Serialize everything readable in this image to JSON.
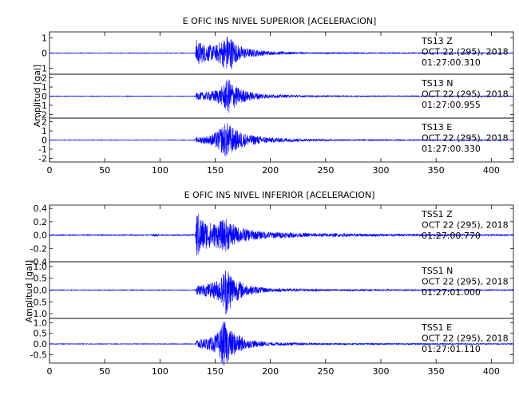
{
  "chart_data": [
    {
      "type": "line",
      "title": "E OFIC INS NIVEL SUPERIOR [ACELERACION]",
      "ylabel": "Amplitud [gal]",
      "xlabel": "",
      "xlim": [
        0,
        420
      ],
      "xticks": [
        "0",
        "50",
        "100",
        "150",
        "200",
        "250",
        "300",
        "350",
        "400"
      ],
      "grid": false,
      "series": [
        {
          "name": "TS13 Z",
          "label_lines": [
            "TS13   Z",
            "OCT 22 (295), 2018",
            "01:27:00.310"
          ],
          "ylim": [
            -1.4,
            1.4
          ],
          "yticks": [
            "1",
            "0",
            "-1"
          ],
          "onset_s": 133,
          "peak_s": 162,
          "peak_amp": 1.3,
          "noise_amp": 0.02,
          "envelope": [
            [
              0,
              0.02
            ],
            [
              132,
              0.02
            ],
            [
              133,
              0.9
            ],
            [
              140,
              0.6
            ],
            [
              150,
              0.5
            ],
            [
              155,
              0.8
            ],
            [
              162,
              1.3
            ],
            [
              170,
              0.55
            ],
            [
              180,
              0.3
            ],
            [
              200,
              0.12
            ],
            [
              230,
              0.06
            ],
            [
              260,
              0.04
            ],
            [
              420,
              0.02
            ]
          ]
        },
        {
          "name": "TS13 N",
          "label_lines": [
            "TS13   N",
            "OCT 22 (295), 2018",
            "01:27:00.955"
          ],
          "ylim": [
            -2.4,
            2.4
          ],
          "yticks": [
            "2",
            "1",
            "0",
            "-1",
            "-2"
          ],
          "onset_s": 133,
          "peak_s": 162,
          "peak_amp": 2.0,
          "noise_amp": 0.03,
          "envelope": [
            [
              0,
              0.03
            ],
            [
              132,
              0.03
            ],
            [
              133,
              0.4
            ],
            [
              145,
              0.5
            ],
            [
              155,
              0.9
            ],
            [
              162,
              2.0
            ],
            [
              170,
              1.0
            ],
            [
              180,
              0.5
            ],
            [
              200,
              0.2
            ],
            [
              240,
              0.08
            ],
            [
              300,
              0.05
            ],
            [
              420,
              0.03
            ]
          ]
        },
        {
          "name": "TS13 E",
          "label_lines": [
            "TS13   E",
            "OCT 22 (295), 2018",
            "01:27:00.330"
          ],
          "ylim": [
            -2.4,
            2.4
          ],
          "yticks": [
            "2",
            "1",
            "0",
            "-1",
            "-2"
          ],
          "onset_s": 133,
          "peak_s": 160,
          "peak_amp": 2.0,
          "noise_amp": 0.03,
          "envelope": [
            [
              0,
              0.03
            ],
            [
              132,
              0.03
            ],
            [
              133,
              0.3
            ],
            [
              145,
              0.5
            ],
            [
              152,
              1.0
            ],
            [
              160,
              2.0
            ],
            [
              168,
              1.2
            ],
            [
              180,
              0.6
            ],
            [
              200,
              0.3
            ],
            [
              230,
              0.15
            ],
            [
              260,
              0.08
            ],
            [
              420,
              0.03
            ]
          ]
        }
      ]
    },
    {
      "type": "line",
      "title": "E OFIC INS NIVEL INFERIOR [ACELERACION]",
      "ylabel": "Amplitud [gal]",
      "xlabel": "",
      "xlim": [
        0,
        420
      ],
      "xticks": [
        "0",
        "50",
        "100",
        "150",
        "200",
        "250",
        "300",
        "350",
        "400"
      ],
      "grid": false,
      "series": [
        {
          "name": "TSS1 Z",
          "label_lines": [
            "TSS1   Z",
            "OCT 22 (295), 2018",
            "01:27:00.770"
          ],
          "ylim": [
            -0.4,
            0.45
          ],
          "yticks": [
            "0.4",
            "0.2",
            "0.0",
            "-0.2",
            "-0.4"
          ],
          "onset_s": 133,
          "peak_s": 133,
          "peak_amp": 0.38,
          "noise_amp": 0.008,
          "envelope": [
            [
              0,
              0.008
            ],
            [
              90,
              0.008
            ],
            [
              95,
              0.02
            ],
            [
              100,
              0.008
            ],
            [
              132,
              0.01
            ],
            [
              133,
              0.38
            ],
            [
              140,
              0.22
            ],
            [
              150,
              0.18
            ],
            [
              160,
              0.25
            ],
            [
              170,
              0.12
            ],
            [
              190,
              0.06
            ],
            [
              230,
              0.03
            ],
            [
              300,
              0.02
            ],
            [
              420,
              0.01
            ]
          ]
        },
        {
          "name": "TSS1 N",
          "label_lines": [
            "TSS1   N",
            "OCT 22 (295), 2018",
            "01:27:01.000"
          ],
          "ylim": [
            -1.2,
            1.2
          ],
          "yticks": [
            "1.0",
            "0.5",
            "0.0",
            "-0.5",
            "-1.0"
          ],
          "onset_s": 133,
          "peak_s": 160,
          "peak_amp": 1.1,
          "noise_amp": 0.015,
          "envelope": [
            [
              0,
              0.015
            ],
            [
              132,
              0.015
            ],
            [
              133,
              0.2
            ],
            [
              145,
              0.3
            ],
            [
              155,
              0.5
            ],
            [
              160,
              1.1
            ],
            [
              168,
              0.5
            ],
            [
              180,
              0.2
            ],
            [
              200,
              0.08
            ],
            [
              260,
              0.04
            ],
            [
              420,
              0.02
            ]
          ]
        },
        {
          "name": "TSS1 E",
          "label_lines": [
            "TSS1   E",
            "OCT 22 (295), 2018",
            "01:27:01.110"
          ],
          "ylim": [
            -0.9,
            1.2
          ],
          "yticks": [
            "1.0",
            "0.5",
            "0.0",
            "-0.5"
          ],
          "onset_s": 133,
          "peak_s": 158,
          "peak_amp": 1.1,
          "noise_amp": 0.015,
          "envelope": [
            [
              0,
              0.015
            ],
            [
              132,
              0.015
            ],
            [
              133,
              0.2
            ],
            [
              145,
              0.3
            ],
            [
              152,
              0.5
            ],
            [
              158,
              1.1
            ],
            [
              165,
              0.6
            ],
            [
              180,
              0.2
            ],
            [
              200,
              0.08
            ],
            [
              260,
              0.04
            ],
            [
              420,
              0.02
            ]
          ]
        }
      ]
    }
  ],
  "style": {
    "trace_color": "#0000ff",
    "axis_color": "#000000",
    "background": "#ffffff"
  }
}
